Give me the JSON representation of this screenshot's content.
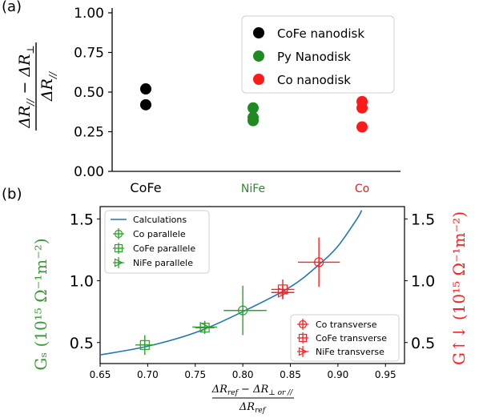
{
  "chart_data": [
    {
      "type": "scatter",
      "panel_label": "(a)",
      "ylabel_main": "ΔR",
      "ylabel_sub_par": "//",
      "ylabel_minus": " − ΔR",
      "ylabel_sub_perp": "⊥",
      "ylabel_den": "ΔR",
      "ylabel_den_sub": "//",
      "ylim": [
        0,
        1
      ],
      "yticks": [
        "0.00",
        "0.25",
        "0.50",
        "0.75",
        "1.00"
      ],
      "ytick_values": [
        0,
        0.25,
        0.5,
        0.75,
        1.0
      ],
      "categories": [
        "CoFe",
        "NiFe",
        "Co"
      ],
      "category_colors": [
        "#000000",
        "#2e8b2e",
        "#e02020"
      ],
      "legend_position": "top-right",
      "series": [
        {
          "name": "CoFe nanodisk",
          "color": "#000000",
          "category": "CoFe",
          "values": [
            0.52,
            0.42
          ]
        },
        {
          "name": "Py Nanodisk",
          "color": "#1f8a1f",
          "category": "NiFe",
          "values": [
            0.4,
            0.34,
            0.32
          ]
        },
        {
          "name": "Co nanodisk",
          "color": "#ff1a1a",
          "category": "Co",
          "values": [
            0.44,
            0.4,
            0.28
          ]
        }
      ]
    },
    {
      "type": "scatter",
      "panel_label": "(b)",
      "xlim": [
        0.65,
        0.97
      ],
      "ylim": [
        0.33,
        1.6
      ],
      "xticks": [
        "0.65",
        "0.70",
        "0.75",
        "0.80",
        "0.85",
        "0.90",
        "0.95"
      ],
      "xtick_values": [
        0.65,
        0.7,
        0.75,
        0.8,
        0.85,
        0.9,
        0.95
      ],
      "yticks": [
        "0.5",
        "1.0",
        "1.5"
      ],
      "ytick_values": [
        0.5,
        1.0,
        1.5
      ],
      "xlabel_num_a": "ΔR",
      "xlabel_num_a_sub": "ref",
      "xlabel_num_b": " − ΔR",
      "xlabel_num_b_sub": "⊥ or //",
      "xlabel_den": "ΔR",
      "xlabel_den_sub": "ref",
      "ylabel_left": "Gₛ (10¹⁵  Ω⁻¹m⁻²)",
      "ylabel_right": "G↑↓ (10¹⁵  Ω⁻¹m⁻²)",
      "left_color": "#3a9a3a",
      "right_color": "#ff2020",
      "curve": {
        "name": "Calculations",
        "color": "#1f77b4",
        "x": [
          0.65,
          0.7,
          0.75,
          0.8,
          0.85,
          0.88,
          0.9,
          0.92,
          0.925
        ],
        "y": [
          0.4,
          0.47,
          0.58,
          0.75,
          0.95,
          1.13,
          1.28,
          1.5,
          1.57
        ]
      },
      "legend_left": [
        "Calculations",
        "Co parallele",
        "CoFe parallele",
        "NiFe parallele"
      ],
      "legend_right": [
        "Co transverse",
        "CoFe transverse",
        "NiFe transverse"
      ],
      "series": [
        {
          "name": "Co parallele",
          "color": "#2ca02c",
          "marker": "circle-plus",
          "x": [
            0.8
          ],
          "y": [
            0.76
          ],
          "xerr": [
            0.02
          ],
          "yerr": [
            0.2
          ]
        },
        {
          "name": "CoFe parallele",
          "color": "#2ca02c",
          "marker": "square-plus",
          "x": [
            0.697,
            0.76
          ],
          "y": [
            0.48,
            0.62
          ],
          "xerr": [
            0.01,
            0.01
          ],
          "yerr": [
            0.08,
            0.05
          ]
        },
        {
          "name": "NiFe parallele",
          "color": "#2ca02c",
          "marker": "triangle-plus",
          "x": [
            0.76
          ],
          "y": [
            0.625
          ],
          "xerr": [
            0.013
          ],
          "yerr": [
            0.05
          ]
        },
        {
          "name": "Co transverse",
          "color": "#ff2020",
          "marker": "circle-plus",
          "x": [
            0.88
          ],
          "y": [
            1.15
          ],
          "xerr": [
            0.022
          ],
          "yerr": [
            0.2
          ]
        },
        {
          "name": "CoFe transverse",
          "color": "#ff2020",
          "marker": "square-plus",
          "x": [
            0.842
          ],
          "y": [
            0.93
          ],
          "xerr": [
            0.012
          ],
          "yerr": [
            0.08
          ]
        },
        {
          "name": "NiFe transverse",
          "color": "#ff2020",
          "marker": "triangle-plus",
          "x": [
            0.842
          ],
          "y": [
            0.905
          ],
          "xerr": [
            0.012
          ],
          "yerr": [
            0.05
          ]
        }
      ],
      "extra_green_xerr": {
        "x": 0.8,
        "y": 0.76,
        "xerr_left": 0.02,
        "xerr_right": 0.025
      }
    }
  ]
}
